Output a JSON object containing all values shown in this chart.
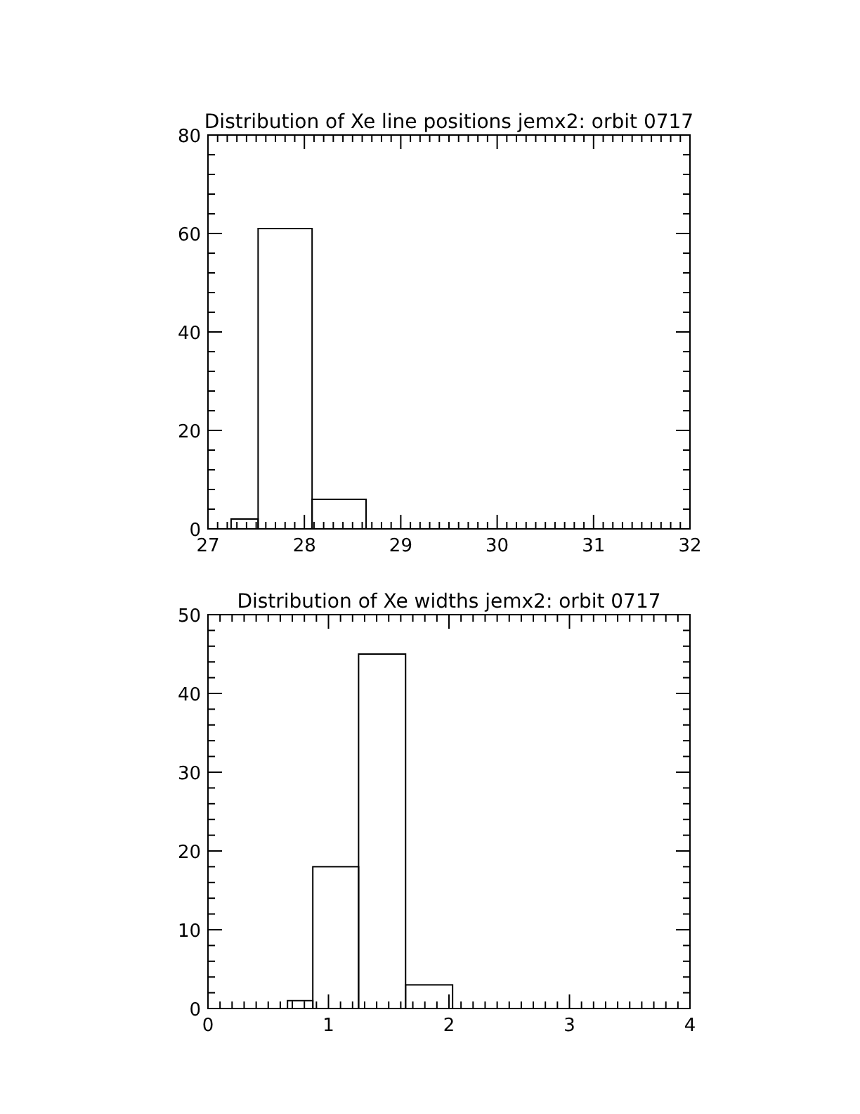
{
  "chart_data": [
    {
      "type": "histogram",
      "title": "Distribution of Xe line positions jemx2: orbit 0717",
      "bins": [
        27.24,
        27.52,
        28.08,
        28.64
      ],
      "values": [
        2,
        61,
        6
      ],
      "color": "#000000",
      "xlim": [
        27,
        32
      ],
      "ylim": [
        0,
        80
      ],
      "xticks": [
        27,
        {
          "value": 27.1,
          "label": null
        },
        {
          "value": 27.2,
          "label": null
        },
        {
          "value": 27.3,
          "label": null
        },
        {
          "value": 27.4,
          "label": null
        },
        {
          "value": 27.5,
          "label": null
        },
        {
          "value": 27.6,
          "label": null
        },
        {
          "value": 27.7,
          "label": null
        },
        {
          "value": 27.8,
          "label": null
        },
        {
          "value": 27.9,
          "label": null
        },
        28,
        {
          "value": 28.1,
          "label": null
        },
        {
          "value": 28.2,
          "label": null
        },
        {
          "value": 28.3,
          "label": null
        },
        {
          "value": 28.4,
          "label": null
        },
        {
          "value": 28.5,
          "label": null
        },
        {
          "value": 28.6,
          "label": null
        },
        {
          "value": 28.7,
          "label": null
        },
        {
          "value": 28.8,
          "label": null
        },
        {
          "value": 28.9,
          "label": null
        },
        29,
        {
          "value": 29.1,
          "label": null
        },
        {
          "value": 29.2,
          "label": null
        },
        {
          "value": 29.3,
          "label": null
        },
        {
          "value": 29.4,
          "label": null
        },
        {
          "value": 29.5,
          "label": null
        },
        {
          "value": 29.6,
          "label": null
        },
        {
          "value": 29.7,
          "label": null
        },
        {
          "value": 29.8,
          "label": null
        },
        {
          "value": 29.9,
          "label": null
        },
        30,
        {
          "value": 30.1,
          "label": null
        },
        {
          "value": 30.2,
          "label": null
        },
        {
          "value": 30.3,
          "label": null
        },
        {
          "value": 30.4,
          "label": null
        },
        {
          "value": 30.5,
          "label": null
        },
        {
          "value": 30.6,
          "label": null
        },
        {
          "value": 30.7,
          "label": null
        },
        {
          "value": 30.8,
          "label": null
        },
        {
          "value": 30.9,
          "label": null
        },
        31,
        {
          "value": 31.1,
          "label": null
        },
        {
          "value": 31.2,
          "label": null
        },
        {
          "value": 31.3,
          "label": null
        },
        {
          "value": 31.4,
          "label": null
        },
        {
          "value": 31.5,
          "label": null
        },
        {
          "value": 31.6,
          "label": null
        },
        {
          "value": 31.7,
          "label": null
        },
        {
          "value": 31.8,
          "label": null
        },
        {
          "value": 31.9,
          "label": null
        },
        32
      ],
      "yticks": [
        0,
        {
          "value": 4,
          "label": null
        },
        {
          "value": 8,
          "label": null
        },
        {
          "value": 12,
          "label": null
        },
        {
          "value": 16,
          "label": null
        },
        20,
        {
          "value": 24,
          "label": null
        },
        {
          "value": 28,
          "label": null
        },
        {
          "value": 32,
          "label": null
        },
        {
          "value": 36,
          "label": null
        },
        40,
        {
          "value": 44,
          "label": null
        },
        {
          "value": 48,
          "label": null
        },
        {
          "value": 52,
          "label": null
        },
        {
          "value": 56,
          "label": null
        },
        60,
        {
          "value": 64,
          "label": null
        },
        {
          "value": 68,
          "label": null
        },
        {
          "value": 72,
          "label": null
        },
        {
          "value": 76,
          "label": null
        },
        80
      ]
    },
    {
      "type": "histogram",
      "title": "Distribution of Xe widths jemx2: orbit 0717",
      "bins": [
        0.66,
        0.87,
        1.25,
        1.64,
        2.03
      ],
      "values": [
        1,
        18,
        45,
        3
      ],
      "color": "#000000",
      "xlim": [
        0,
        4
      ],
      "ylim": [
        0,
        50
      ],
      "xticks": [
        0,
        {
          "value": 0.1,
          "label": null
        },
        {
          "value": 0.2,
          "label": null
        },
        {
          "value": 0.3,
          "label": null
        },
        {
          "value": 0.4,
          "label": null
        },
        {
          "value": 0.5,
          "label": null
        },
        {
          "value": 0.6,
          "label": null
        },
        {
          "value": 0.7,
          "label": null
        },
        {
          "value": 0.8,
          "label": null
        },
        {
          "value": 0.9,
          "label": null
        },
        1,
        {
          "value": 1.1,
          "label": null
        },
        {
          "value": 1.2,
          "label": null
        },
        {
          "value": 1.3,
          "label": null
        },
        {
          "value": 1.4,
          "label": null
        },
        {
          "value": 1.5,
          "label": null
        },
        {
          "value": 1.6,
          "label": null
        },
        {
          "value": 1.7,
          "label": null
        },
        {
          "value": 1.8,
          "label": null
        },
        {
          "value": 1.9,
          "label": null
        },
        2,
        {
          "value": 2.1,
          "label": null
        },
        {
          "value": 2.2,
          "label": null
        },
        {
          "value": 2.3,
          "label": null
        },
        {
          "value": 2.4,
          "label": null
        },
        {
          "value": 2.5,
          "label": null
        },
        {
          "value": 2.6,
          "label": null
        },
        {
          "value": 2.7,
          "label": null
        },
        {
          "value": 2.8,
          "label": null
        },
        {
          "value": 2.9,
          "label": null
        },
        3,
        {
          "value": 3.1,
          "label": null
        },
        {
          "value": 3.2,
          "label": null
        },
        {
          "value": 3.3,
          "label": null
        },
        {
          "value": 3.4,
          "label": null
        },
        {
          "value": 3.5,
          "label": null
        },
        {
          "value": 3.6,
          "label": null
        },
        {
          "value": 3.7,
          "label": null
        },
        {
          "value": 3.8,
          "label": null
        },
        {
          "value": 3.9,
          "label": null
        },
        4
      ],
      "yticks": [
        0,
        {
          "value": 2,
          "label": null
        },
        {
          "value": 4,
          "label": null
        },
        {
          "value": 6,
          "label": null
        },
        {
          "value": 8,
          "label": null
        },
        10,
        {
          "value": 12,
          "label": null
        },
        {
          "value": 14,
          "label": null
        },
        {
          "value": 16,
          "label": null
        },
        {
          "value": 18,
          "label": null
        },
        20,
        {
          "value": 22,
          "label": null
        },
        {
          "value": 24,
          "label": null
        },
        {
          "value": 26,
          "label": null
        },
        {
          "value": 28,
          "label": null
        },
        30,
        {
          "value": 32,
          "label": null
        },
        {
          "value": 34,
          "label": null
        },
        {
          "value": 36,
          "label": null
        },
        {
          "value": 38,
          "label": null
        },
        40,
        {
          "value": 42,
          "label": null
        },
        {
          "value": 44,
          "label": null
        },
        {
          "value": 46,
          "label": null
        },
        {
          "value": 48,
          "label": null
        },
        50
      ]
    }
  ]
}
